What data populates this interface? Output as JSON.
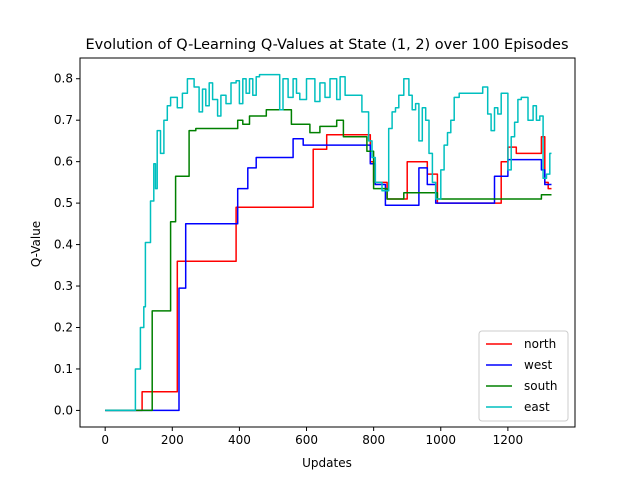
{
  "chart_data": {
    "type": "line",
    "title": "Evolution of Q-Learning Q-Values at State (1, 2) over 100 Episodes",
    "xlabel": "Updates",
    "ylabel": "Q-Value",
    "xlim": [
      -75,
      1400
    ],
    "ylim": [
      -0.04,
      0.85
    ],
    "xticks": [
      0,
      200,
      400,
      600,
      800,
      1000,
      1200
    ],
    "yticks": [
      0.0,
      0.1,
      0.2,
      0.3,
      0.4,
      0.5,
      0.6,
      0.7,
      0.8
    ],
    "ytick_labels": [
      "0.0",
      "0.1",
      "0.2",
      "0.3",
      "0.4",
      "0.5",
      "0.6",
      "0.7",
      "0.8"
    ],
    "grid": false,
    "legend_position": "lower right",
    "series": [
      {
        "name": "north",
        "color": "#ff0000",
        "points": [
          [
            0,
            0
          ],
          [
            110,
            0
          ],
          [
            110,
            0.045
          ],
          [
            215,
            0.045
          ],
          [
            215,
            0.36
          ],
          [
            390,
            0.36
          ],
          [
            390,
            0.49
          ],
          [
            620,
            0.49
          ],
          [
            620,
            0.63
          ],
          [
            660,
            0.63
          ],
          [
            660,
            0.665
          ],
          [
            790,
            0.665
          ],
          [
            790,
            0.6
          ],
          [
            800,
            0.6
          ],
          [
            800,
            0.55
          ],
          [
            840,
            0.55
          ],
          [
            840,
            0.51
          ],
          [
            900,
            0.51
          ],
          [
            900,
            0.6
          ],
          [
            960,
            0.6
          ],
          [
            960,
            0.57
          ],
          [
            990,
            0.57
          ],
          [
            990,
            0.5
          ],
          [
            1180,
            0.5
          ],
          [
            1180,
            0.6
          ],
          [
            1200,
            0.6
          ],
          [
            1200,
            0.635
          ],
          [
            1225,
            0.635
          ],
          [
            1225,
            0.62
          ],
          [
            1300,
            0.62
          ],
          [
            1300,
            0.66
          ],
          [
            1310,
            0.66
          ],
          [
            1310,
            0.55
          ],
          [
            1320,
            0.55
          ],
          [
            1320,
            0.535
          ],
          [
            1330,
            0.535
          ]
        ]
      },
      {
        "name": "west",
        "color": "#0000ff",
        "points": [
          [
            0,
            0
          ],
          [
            220,
            0
          ],
          [
            220,
            0.295
          ],
          [
            240,
            0.295
          ],
          [
            240,
            0.45
          ],
          [
            395,
            0.45
          ],
          [
            395,
            0.535
          ],
          [
            425,
            0.535
          ],
          [
            425,
            0.585
          ],
          [
            450,
            0.585
          ],
          [
            450,
            0.61
          ],
          [
            560,
            0.61
          ],
          [
            560,
            0.655
          ],
          [
            590,
            0.655
          ],
          [
            590,
            0.64
          ],
          [
            790,
            0.64
          ],
          [
            790,
            0.595
          ],
          [
            805,
            0.595
          ],
          [
            805,
            0.545
          ],
          [
            835,
            0.545
          ],
          [
            835,
            0.495
          ],
          [
            935,
            0.495
          ],
          [
            935,
            0.585
          ],
          [
            960,
            0.585
          ],
          [
            960,
            0.545
          ],
          [
            985,
            0.545
          ],
          [
            985,
            0.5
          ],
          [
            1160,
            0.5
          ],
          [
            1160,
            0.565
          ],
          [
            1200,
            0.565
          ],
          [
            1200,
            0.605
          ],
          [
            1300,
            0.605
          ],
          [
            1300,
            0.58
          ],
          [
            1310,
            0.58
          ],
          [
            1310,
            0.545
          ],
          [
            1330,
            0.545
          ]
        ]
      },
      {
        "name": "south",
        "color": "#008000",
        "points": [
          [
            0,
            0
          ],
          [
            140,
            0
          ],
          [
            140,
            0.24
          ],
          [
            195,
            0.24
          ],
          [
            195,
            0.455
          ],
          [
            210,
            0.455
          ],
          [
            210,
            0.565
          ],
          [
            250,
            0.565
          ],
          [
            250,
            0.675
          ],
          [
            270,
            0.675
          ],
          [
            270,
            0.68
          ],
          [
            395,
            0.68
          ],
          [
            395,
            0.7
          ],
          [
            410,
            0.7
          ],
          [
            410,
            0.69
          ],
          [
            430,
            0.69
          ],
          [
            430,
            0.71
          ],
          [
            480,
            0.71
          ],
          [
            480,
            0.725
          ],
          [
            555,
            0.725
          ],
          [
            555,
            0.69
          ],
          [
            610,
            0.69
          ],
          [
            610,
            0.67
          ],
          [
            640,
            0.67
          ],
          [
            640,
            0.685
          ],
          [
            690,
            0.685
          ],
          [
            690,
            0.7
          ],
          [
            710,
            0.7
          ],
          [
            710,
            0.66
          ],
          [
            780,
            0.66
          ],
          [
            780,
            0.625
          ],
          [
            800,
            0.625
          ],
          [
            800,
            0.535
          ],
          [
            840,
            0.535
          ],
          [
            840,
            0.51
          ],
          [
            890,
            0.51
          ],
          [
            890,
            0.525
          ],
          [
            990,
            0.525
          ],
          [
            990,
            0.51
          ],
          [
            1300,
            0.51
          ],
          [
            1300,
            0.52
          ],
          [
            1330,
            0.52
          ]
        ]
      },
      {
        "name": "east",
        "color": "#00bfbf",
        "points": [
          [
            0,
            0
          ],
          [
            90,
            0
          ],
          [
            90,
            0.1
          ],
          [
            105,
            0.1
          ],
          [
            105,
            0.2
          ],
          [
            115,
            0.2
          ],
          [
            115,
            0.25
          ],
          [
            120,
            0.25
          ],
          [
            120,
            0.405
          ],
          [
            135,
            0.405
          ],
          [
            135,
            0.505
          ],
          [
            145,
            0.505
          ],
          [
            145,
            0.595
          ],
          [
            150,
            0.595
          ],
          [
            150,
            0.535
          ],
          [
            155,
            0.535
          ],
          [
            155,
            0.675
          ],
          [
            165,
            0.675
          ],
          [
            165,
            0.62
          ],
          [
            175,
            0.62
          ],
          [
            175,
            0.7
          ],
          [
            185,
            0.7
          ],
          [
            185,
            0.735
          ],
          [
            195,
            0.735
          ],
          [
            195,
            0.755
          ],
          [
            215,
            0.755
          ],
          [
            215,
            0.73
          ],
          [
            230,
            0.73
          ],
          [
            230,
            0.765
          ],
          [
            245,
            0.765
          ],
          [
            245,
            0.8
          ],
          [
            265,
            0.8
          ],
          [
            265,
            0.78
          ],
          [
            280,
            0.78
          ],
          [
            280,
            0.72
          ],
          [
            290,
            0.72
          ],
          [
            290,
            0.775
          ],
          [
            300,
            0.775
          ],
          [
            300,
            0.735
          ],
          [
            310,
            0.735
          ],
          [
            310,
            0.79
          ],
          [
            320,
            0.79
          ],
          [
            320,
            0.75
          ],
          [
            335,
            0.75
          ],
          [
            335,
            0.71
          ],
          [
            345,
            0.71
          ],
          [
            345,
            0.76
          ],
          [
            360,
            0.76
          ],
          [
            360,
            0.74
          ],
          [
            375,
            0.74
          ],
          [
            375,
            0.79
          ],
          [
            390,
            0.79
          ],
          [
            390,
            0.795
          ],
          [
            400,
            0.795
          ],
          [
            400,
            0.74
          ],
          [
            410,
            0.74
          ],
          [
            410,
            0.8
          ],
          [
            420,
            0.8
          ],
          [
            420,
            0.765
          ],
          [
            430,
            0.765
          ],
          [
            430,
            0.8
          ],
          [
            440,
            0.8
          ],
          [
            440,
            0.76
          ],
          [
            450,
            0.76
          ],
          [
            450,
            0.805
          ],
          [
            460,
            0.805
          ],
          [
            460,
            0.81
          ],
          [
            500,
            0.81
          ],
          [
            500,
            0.81
          ],
          [
            520,
            0.81
          ],
          [
            520,
            0.725
          ],
          [
            530,
            0.725
          ],
          [
            530,
            0.8
          ],
          [
            545,
            0.8
          ],
          [
            545,
            0.755
          ],
          [
            560,
            0.755
          ],
          [
            560,
            0.8
          ],
          [
            570,
            0.8
          ],
          [
            570,
            0.765
          ],
          [
            580,
            0.765
          ],
          [
            580,
            0.75
          ],
          [
            600,
            0.75
          ],
          [
            600,
            0.8
          ],
          [
            625,
            0.8
          ],
          [
            625,
            0.745
          ],
          [
            640,
            0.745
          ],
          [
            640,
            0.79
          ],
          [
            655,
            0.79
          ],
          [
            655,
            0.755
          ],
          [
            670,
            0.755
          ],
          [
            670,
            0.8
          ],
          [
            690,
            0.8
          ],
          [
            690,
            0.75
          ],
          [
            700,
            0.75
          ],
          [
            700,
            0.805
          ],
          [
            715,
            0.805
          ],
          [
            715,
            0.76
          ],
          [
            765,
            0.76
          ],
          [
            765,
            0.72
          ],
          [
            785,
            0.72
          ],
          [
            785,
            0.65
          ],
          [
            795,
            0.65
          ],
          [
            795,
            0.61
          ],
          [
            805,
            0.61
          ],
          [
            805,
            0.55
          ],
          [
            825,
            0.55
          ],
          [
            825,
            0.53
          ],
          [
            845,
            0.53
          ],
          [
            845,
            0.68
          ],
          [
            855,
            0.68
          ],
          [
            855,
            0.72
          ],
          [
            865,
            0.72
          ],
          [
            865,
            0.73
          ],
          [
            875,
            0.73
          ],
          [
            875,
            0.76
          ],
          [
            890,
            0.76
          ],
          [
            890,
            0.8
          ],
          [
            905,
            0.8
          ],
          [
            905,
            0.76
          ],
          [
            915,
            0.76
          ],
          [
            915,
            0.725
          ],
          [
            925,
            0.725
          ],
          [
            925,
            0.74
          ],
          [
            935,
            0.74
          ],
          [
            935,
            0.65
          ],
          [
            945,
            0.65
          ],
          [
            945,
            0.73
          ],
          [
            955,
            0.73
          ],
          [
            955,
            0.7
          ],
          [
            965,
            0.7
          ],
          [
            965,
            0.62
          ],
          [
            975,
            0.62
          ],
          [
            975,
            0.55
          ],
          [
            985,
            0.55
          ],
          [
            985,
            0.51
          ],
          [
            1000,
            0.51
          ],
          [
            1000,
            0.58
          ],
          [
            1010,
            0.58
          ],
          [
            1010,
            0.64
          ],
          [
            1020,
            0.64
          ],
          [
            1020,
            0.67
          ],
          [
            1030,
            0.67
          ],
          [
            1030,
            0.7
          ],
          [
            1040,
            0.7
          ],
          [
            1040,
            0.755
          ],
          [
            1055,
            0.755
          ],
          [
            1055,
            0.765
          ],
          [
            1125,
            0.765
          ],
          [
            1125,
            0.78
          ],
          [
            1140,
            0.78
          ],
          [
            1140,
            0.715
          ],
          [
            1150,
            0.715
          ],
          [
            1150,
            0.675
          ],
          [
            1160,
            0.675
          ],
          [
            1160,
            0.73
          ],
          [
            1170,
            0.73
          ],
          [
            1170,
            0.715
          ],
          [
            1180,
            0.715
          ],
          [
            1180,
            0.765
          ],
          [
            1200,
            0.765
          ],
          [
            1200,
            0.58
          ],
          [
            1210,
            0.58
          ],
          [
            1210,
            0.66
          ],
          [
            1220,
            0.66
          ],
          [
            1220,
            0.695
          ],
          [
            1230,
            0.695
          ],
          [
            1230,
            0.75
          ],
          [
            1240,
            0.75
          ],
          [
            1240,
            0.755
          ],
          [
            1260,
            0.755
          ],
          [
            1260,
            0.7
          ],
          [
            1275,
            0.7
          ],
          [
            1275,
            0.735
          ],
          [
            1285,
            0.735
          ],
          [
            1285,
            0.7
          ],
          [
            1295,
            0.7
          ],
          [
            1295,
            0.71
          ],
          [
            1305,
            0.71
          ],
          [
            1305,
            0.56
          ],
          [
            1315,
            0.56
          ],
          [
            1315,
            0.57
          ],
          [
            1325,
            0.57
          ],
          [
            1325,
            0.62
          ],
          [
            1330,
            0.62
          ]
        ]
      }
    ]
  }
}
